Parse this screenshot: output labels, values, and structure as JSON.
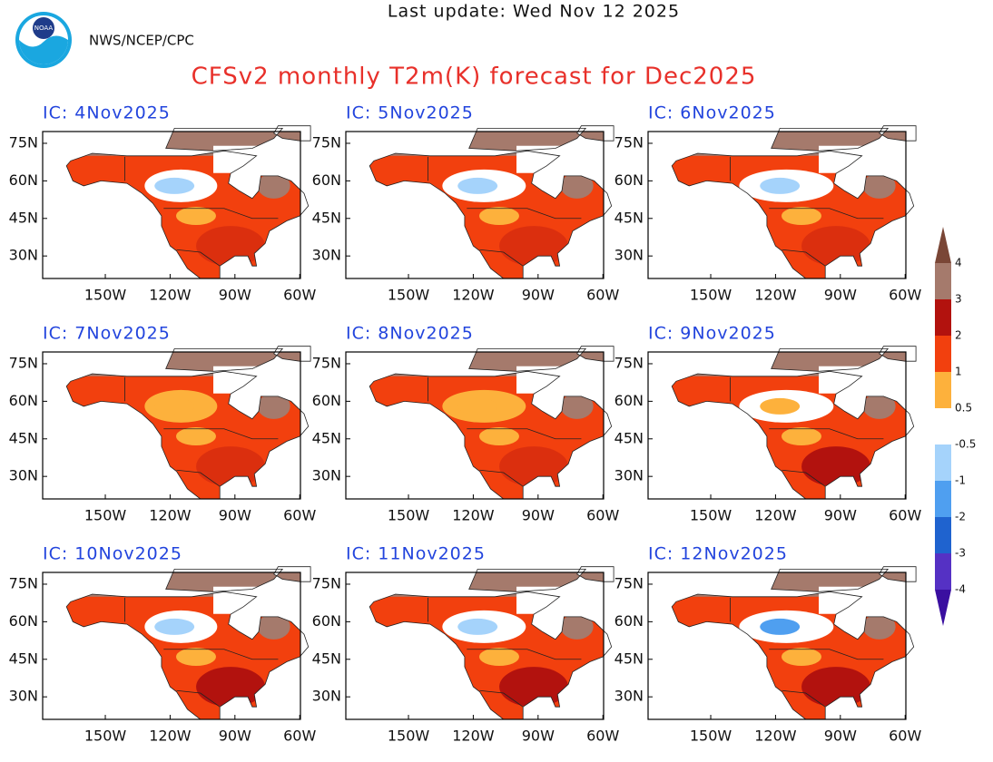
{
  "header": {
    "update": "Last update: Wed Nov 12 2025",
    "source": "NWS/NCEP/CPC",
    "title": "CFSv2 monthly T2m(K) forecast for Dec2025"
  },
  "lat_labels": [
    "75N",
    "60N",
    "45N",
    "30N"
  ],
  "lon_labels": [
    "150W",
    "120W",
    "90W",
    "60W"
  ],
  "panels": [
    {
      "label": "IC: 4Nov2025"
    },
    {
      "label": "IC: 5Nov2025"
    },
    {
      "label": "IC: 6Nov2025"
    },
    {
      "label": "IC: 7Nov2025"
    },
    {
      "label": "IC: 8Nov2025"
    },
    {
      "label": "IC: 9Nov2025"
    },
    {
      "label": "IC: 10Nov2025"
    },
    {
      "label": "IC: 11Nov2025"
    },
    {
      "label": "IC: 12Nov2025"
    }
  ],
  "colorbar": {
    "ticks": [
      4,
      3,
      2,
      1,
      0.5,
      -0.5,
      -1,
      -2,
      -3,
      -4
    ],
    "colors": [
      "#7a4636",
      "#a57a6c",
      "#b2120e",
      "#f2400e",
      "#fdb13c",
      "#ffffff",
      "#a5d3fb",
      "#4f9ff0",
      "#1f63cf",
      "#5531c4",
      "#3a0fa0"
    ]
  }
}
